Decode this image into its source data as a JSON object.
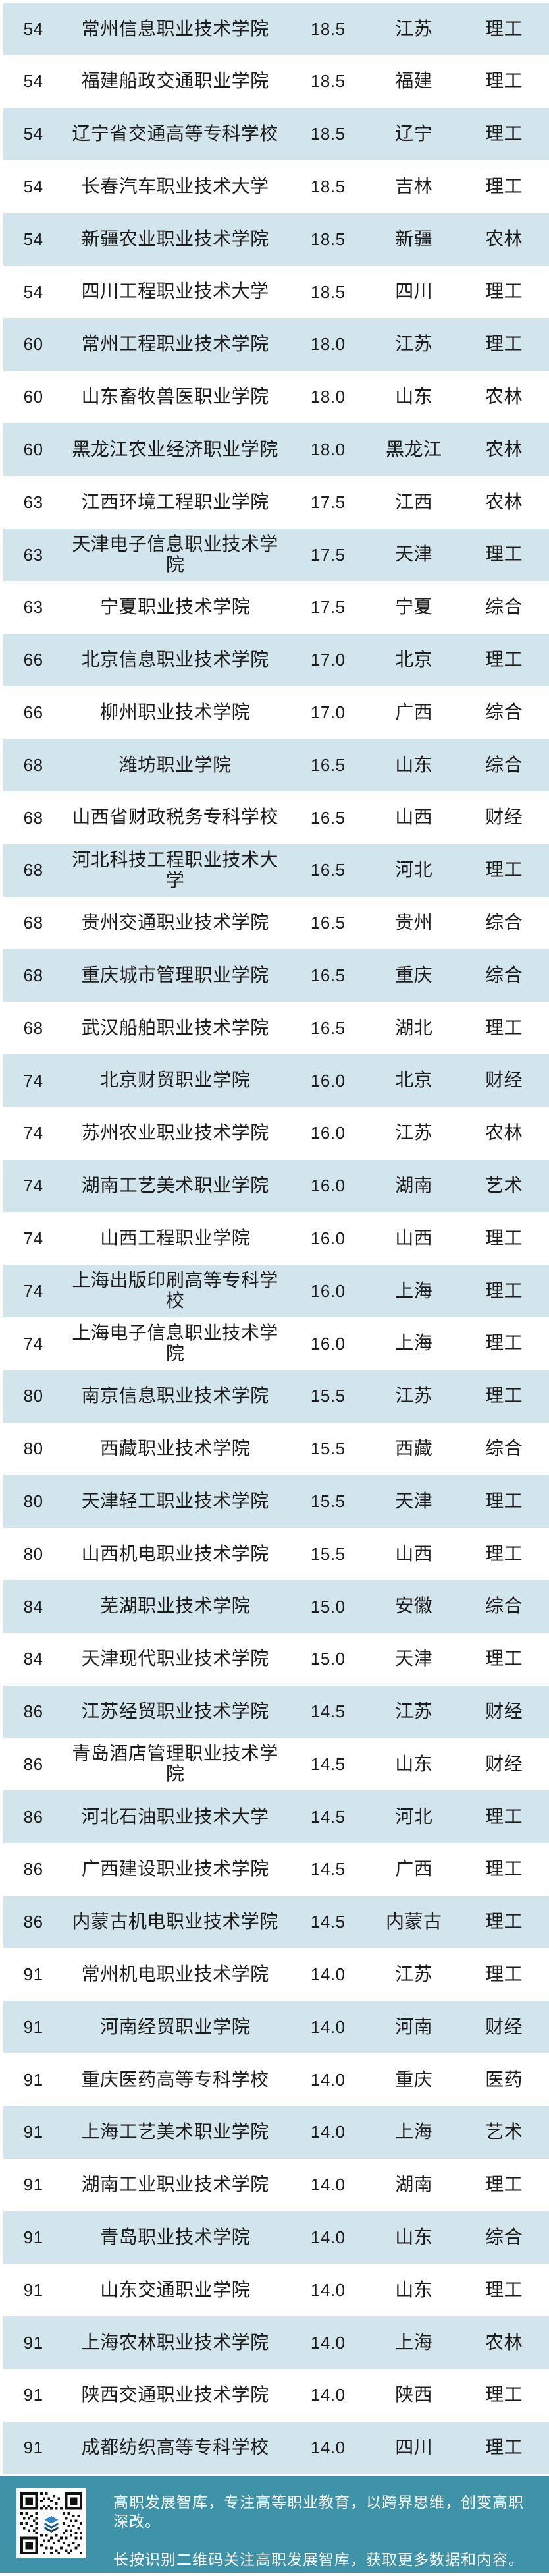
{
  "table": {
    "rows": [
      {
        "rank": 54,
        "name": "常州信息职业技术学院",
        "score": "18.5",
        "province": "江苏",
        "category": "理工"
      },
      {
        "rank": 54,
        "name": "福建船政交通职业学院",
        "score": "18.5",
        "province": "福建",
        "category": "理工"
      },
      {
        "rank": 54,
        "name": "辽宁省交通高等专科学校",
        "score": "18.5",
        "province": "辽宁",
        "category": "理工"
      },
      {
        "rank": 54,
        "name": "长春汽车职业技术大学",
        "score": "18.5",
        "province": "吉林",
        "category": "理工"
      },
      {
        "rank": 54,
        "name": "新疆农业职业技术学院",
        "score": "18.5",
        "province": "新疆",
        "category": "农林"
      },
      {
        "rank": 54,
        "name": "四川工程职业技术大学",
        "score": "18.5",
        "province": "四川",
        "category": "理工"
      },
      {
        "rank": 60,
        "name": "常州工程职业技术学院",
        "score": "18.0",
        "province": "江苏",
        "category": "理工"
      },
      {
        "rank": 60,
        "name": "山东畜牧兽医职业学院",
        "score": "18.0",
        "province": "山东",
        "category": "农林"
      },
      {
        "rank": 60,
        "name": "黑龙江农业经济职业学院",
        "score": "18.0",
        "province": "黑龙江",
        "category": "农林"
      },
      {
        "rank": 63,
        "name": "江西环境工程职业学院",
        "score": "17.5",
        "province": "江西",
        "category": "农林"
      },
      {
        "rank": 63,
        "name": "天津电子信息职业技术学院",
        "score": "17.5",
        "province": "天津",
        "category": "理工"
      },
      {
        "rank": 63,
        "name": "宁夏职业技术学院",
        "score": "17.5",
        "province": "宁夏",
        "category": "综合"
      },
      {
        "rank": 66,
        "name": "北京信息职业技术学院",
        "score": "17.0",
        "province": "北京",
        "category": "理工"
      },
      {
        "rank": 66,
        "name": "柳州职业技术学院",
        "score": "17.0",
        "province": "广西",
        "category": "综合"
      },
      {
        "rank": 68,
        "name": "潍坊职业学院",
        "score": "16.5",
        "province": "山东",
        "category": "综合"
      },
      {
        "rank": 68,
        "name": "山西省财政税务专科学校",
        "score": "16.5",
        "province": "山西",
        "category": "财经"
      },
      {
        "rank": 68,
        "name": "河北科技工程职业技术大学",
        "score": "16.5",
        "province": "河北",
        "category": "理工"
      },
      {
        "rank": 68,
        "name": "贵州交通职业技术学院",
        "score": "16.5",
        "province": "贵州",
        "category": "综合"
      },
      {
        "rank": 68,
        "name": "重庆城市管理职业学院",
        "score": "16.5",
        "province": "重庆",
        "category": "综合"
      },
      {
        "rank": 68,
        "name": "武汉船舶职业技术学院",
        "score": "16.5",
        "province": "湖北",
        "category": "理工"
      },
      {
        "rank": 74,
        "name": "北京财贸职业学院",
        "score": "16.0",
        "province": "北京",
        "category": "财经"
      },
      {
        "rank": 74,
        "name": "苏州农业职业技术学院",
        "score": "16.0",
        "province": "江苏",
        "category": "农林"
      },
      {
        "rank": 74,
        "name": "湖南工艺美术职业学院",
        "score": "16.0",
        "province": "湖南",
        "category": "艺术"
      },
      {
        "rank": 74,
        "name": "山西工程职业学院",
        "score": "16.0",
        "province": "山西",
        "category": "理工"
      },
      {
        "rank": 74,
        "name": "上海出版印刷高等专科学校",
        "score": "16.0",
        "province": "上海",
        "category": "理工"
      },
      {
        "rank": 74,
        "name": "上海电子信息职业技术学院",
        "score": "16.0",
        "province": "上海",
        "category": "理工"
      },
      {
        "rank": 80,
        "name": "南京信息职业技术学院",
        "score": "15.5",
        "province": "江苏",
        "category": "理工"
      },
      {
        "rank": 80,
        "name": "西藏职业技术学院",
        "score": "15.5",
        "province": "西藏",
        "category": "综合"
      },
      {
        "rank": 80,
        "name": "天津轻工职业技术学院",
        "score": "15.5",
        "province": "天津",
        "category": "理工"
      },
      {
        "rank": 80,
        "name": "山西机电职业技术学院",
        "score": "15.5",
        "province": "山西",
        "category": "理工"
      },
      {
        "rank": 84,
        "name": "芜湖职业技术学院",
        "score": "15.0",
        "province": "安徽",
        "category": "综合"
      },
      {
        "rank": 84,
        "name": "天津现代职业技术学院",
        "score": "15.0",
        "province": "天津",
        "category": "理工"
      },
      {
        "rank": 86,
        "name": "江苏经贸职业技术学院",
        "score": "14.5",
        "province": "江苏",
        "category": "财经"
      },
      {
        "rank": 86,
        "name": "青岛酒店管理职业技术学院",
        "score": "14.5",
        "province": "山东",
        "category": "财经"
      },
      {
        "rank": 86,
        "name": "河北石油职业技术大学",
        "score": "14.5",
        "province": "河北",
        "category": "理工"
      },
      {
        "rank": 86,
        "name": "广西建设职业技术学院",
        "score": "14.5",
        "province": "广西",
        "category": "理工"
      },
      {
        "rank": 86,
        "name": "内蒙古机电职业技术学院",
        "score": "14.5",
        "province": "内蒙古",
        "category": "理工"
      },
      {
        "rank": 91,
        "name": "常州机电职业技术学院",
        "score": "14.0",
        "province": "江苏",
        "category": "理工"
      },
      {
        "rank": 91,
        "name": "河南经贸职业学院",
        "score": "14.0",
        "province": "河南",
        "category": "财经"
      },
      {
        "rank": 91,
        "name": "重庆医药高等专科学校",
        "score": "14.0",
        "province": "重庆",
        "category": "医药"
      },
      {
        "rank": 91,
        "name": "上海工艺美术职业学院",
        "score": "14.0",
        "province": "上海",
        "category": "艺术"
      },
      {
        "rank": 91,
        "name": "湖南工业职业技术学院",
        "score": "14.0",
        "province": "湖南",
        "category": "理工"
      },
      {
        "rank": 91,
        "name": "青岛职业技术学院",
        "score": "14.0",
        "province": "山东",
        "category": "综合"
      },
      {
        "rank": 91,
        "name": "山东交通职业学院",
        "score": "14.0",
        "province": "山东",
        "category": "理工"
      },
      {
        "rank": 91,
        "name": "上海农林职业技术学院",
        "score": "14.0",
        "province": "上海",
        "category": "农林"
      },
      {
        "rank": 91,
        "name": "陕西交通职业技术学院",
        "score": "14.0",
        "province": "陕西",
        "category": "理工"
      },
      {
        "rank": 91,
        "name": "成都纺织高等专科学校",
        "score": "14.0",
        "province": "四川",
        "category": "理工"
      }
    ]
  },
  "footer": {
    "line1": "高职发展智库，专注高等职业教育，以跨界思维，创变高职深改。",
    "line2": "长按识别二维码关注高职发展智库，获取更多数据和内容。"
  },
  "colors": {
    "row_alt_bg": "#d3e5ec",
    "footer_bg": "#3f93a8",
    "table_text": "#1c1c1c",
    "footer_text": "#ffffff",
    "qr_logo_blue": "#2e86c8",
    "qr_logo_dark_blue": "#1b5e94"
  }
}
